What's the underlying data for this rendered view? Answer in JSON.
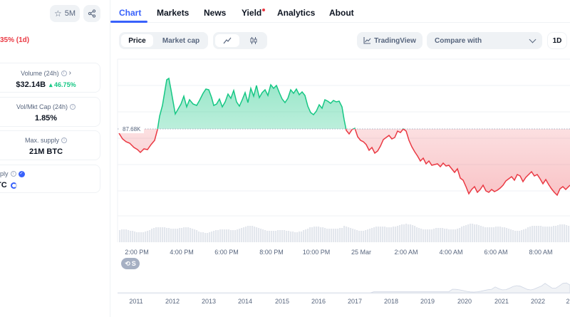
{
  "left_panel": {
    "watchlist_count": "5M",
    "price_change": "35% (1d)",
    "volume_label": "Volume (24h)",
    "volume_value": "$32.14B",
    "volume_change": "46.75%",
    "vol_mkt_label": "Vol/Mkt Cap (24h)",
    "vol_mkt_value": "1.85%",
    "max_supply_label": "Max. supply",
    "max_supply_value": "21M BTC",
    "circ_supply_label": "pply",
    "circ_supply_value": "TC"
  },
  "tabs": [
    {
      "label": "Chart"
    },
    {
      "label": "Markets"
    },
    {
      "label": "News"
    },
    {
      "label": "Yield"
    },
    {
      "label": "Analytics"
    },
    {
      "label": "About"
    }
  ],
  "toolbar": {
    "price_label": "Price",
    "market_cap_label": "Market cap",
    "tradingview_label": "TradingView",
    "compare_placeholder": "Compare with",
    "range_label": "1D"
  },
  "history_label": "S",
  "colors": {
    "accent": "#3861fb",
    "up": "#16c784",
    "down": "#ea3943"
  },
  "chart_data": {
    "type": "area",
    "reference_label": "87.68K",
    "x_labels": [
      "2:00 PM",
      "4:00 PM",
      "6:00 PM",
      "8:00 PM",
      "10:00 PM",
      "25 Mar",
      "2:00 AM",
      "4:00 AM",
      "6:00 AM",
      "8:00 AM"
    ],
    "navigator_labels": [
      "2011",
      "2012",
      "2013",
      "2014",
      "2015",
      "2016",
      "2017",
      "2018",
      "2019",
      "2020",
      "2021",
      "2022",
      "2"
    ]
  }
}
